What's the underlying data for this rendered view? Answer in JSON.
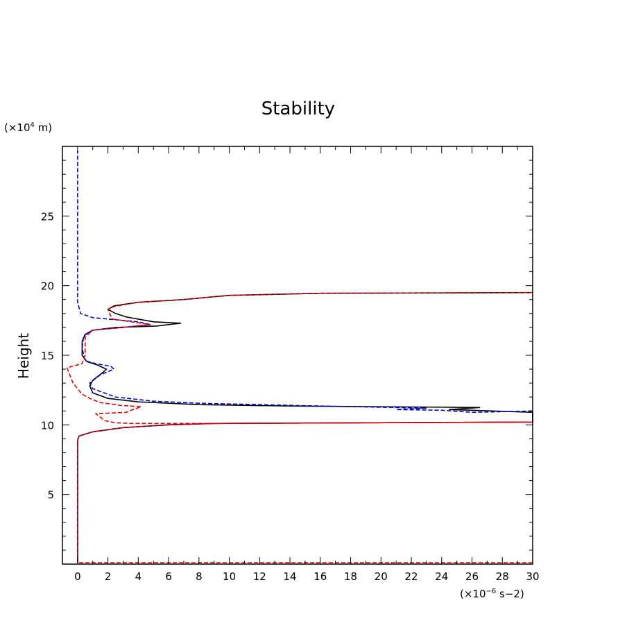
{
  "chart_data": {
    "type": "line",
    "title": "Stability",
    "ylabel": "Height",
    "y_unit_base": "(×10",
    "y_unit_exp": "4",
    "y_unit_tail": " m)",
    "x_unit_base": "(×10",
    "x_unit_exp": "−6",
    "x_unit_tail": " s−2)",
    "xlim": [
      -1,
      30
    ],
    "ylim": [
      0,
      30
    ],
    "xticks": [
      0,
      2,
      4,
      6,
      8,
      10,
      12,
      14,
      16,
      18,
      20,
      22,
      24,
      26,
      28,
      30
    ],
    "yticks": [
      5,
      10,
      15,
      20,
      25
    ],
    "grid": false,
    "legend": "none",
    "series": [
      {
        "color": "#000000",
        "dash": "solid",
        "points": [
          [
            0,
            0.1
          ],
          [
            0,
            8.9
          ],
          [
            0.1,
            9.2
          ],
          [
            1,
            9.5
          ],
          [
            3,
            9.8
          ],
          [
            6,
            10.0
          ],
          [
            9,
            10.1
          ],
          [
            30,
            10.2
          ],
          [
            30,
            10.9
          ],
          [
            26,
            11.05
          ],
          [
            24.5,
            11.1
          ],
          [
            26.5,
            11.25
          ],
          [
            14,
            11.35
          ],
          [
            8,
            11.45
          ],
          [
            4,
            11.65
          ],
          [
            2,
            11.9
          ],
          [
            1,
            12.3
          ],
          [
            0.8,
            12.8
          ],
          [
            1,
            13.2
          ],
          [
            1.7,
            13.8
          ],
          [
            1.9,
            14.0
          ],
          [
            1.3,
            14.3
          ],
          [
            0.6,
            14.55
          ],
          [
            0.3,
            15.0
          ],
          [
            0.3,
            16.0
          ],
          [
            0.5,
            16.5
          ],
          [
            1,
            16.8
          ],
          [
            2.5,
            17.0
          ],
          [
            5.2,
            17.1
          ],
          [
            6.8,
            17.3
          ],
          [
            5,
            17.4
          ],
          [
            3.2,
            17.75
          ],
          [
            2.5,
            18.0
          ],
          [
            2,
            18.3
          ],
          [
            2.4,
            18.55
          ],
          [
            4,
            18.8
          ],
          [
            7,
            19.0
          ],
          [
            10,
            19.3
          ],
          [
            16,
            19.45
          ],
          [
            30,
            19.5
          ]
        ]
      },
      {
        "color": "#0000cc",
        "dash": "dashed",
        "points": [
          [
            0,
            0.1
          ],
          [
            0,
            8.9
          ],
          [
            0.1,
            9.2
          ],
          [
            1,
            9.5
          ],
          [
            3,
            9.8
          ],
          [
            6,
            10.0
          ],
          [
            9,
            10.1
          ],
          [
            30,
            10.2
          ],
          [
            30,
            11.0
          ],
          [
            26,
            10.9
          ],
          [
            24,
            11.05
          ],
          [
            21,
            11.1
          ],
          [
            23,
            11.2
          ],
          [
            14,
            11.4
          ],
          [
            8,
            11.55
          ],
          [
            5,
            11.7
          ],
          [
            2.5,
            12.0
          ],
          [
            1,
            12.6
          ],
          [
            0.8,
            13.0
          ],
          [
            1.5,
            13.6
          ],
          [
            2.4,
            14.0
          ],
          [
            2.2,
            14.2
          ],
          [
            1.2,
            14.4
          ],
          [
            0.5,
            14.6
          ],
          [
            0.3,
            15.5
          ],
          [
            0.4,
            16.4
          ],
          [
            1,
            16.8
          ],
          [
            3,
            17.0
          ],
          [
            4.8,
            17.2
          ],
          [
            4,
            17.4
          ],
          [
            2.5,
            17.55
          ],
          [
            1,
            17.7
          ],
          [
            0.2,
            18.0
          ],
          [
            0,
            18.8
          ],
          [
            0,
            29.7
          ]
        ]
      },
      {
        "color": "#dd0000",
        "dash": "dashed",
        "points": [
          [
            30,
            0.1
          ],
          [
            0,
            0.1
          ],
          [
            0,
            8.9
          ],
          [
            0.1,
            9.2
          ],
          [
            1,
            9.5
          ],
          [
            3,
            9.8
          ],
          [
            6,
            10.0
          ],
          [
            9,
            10.1
          ],
          [
            30,
            10.2
          ],
          [
            30,
            10.2
          ],
          [
            9,
            10.1
          ],
          [
            3.5,
            10.1
          ],
          [
            2.5,
            10.15
          ],
          [
            1.8,
            10.3
          ],
          [
            1.2,
            10.8
          ],
          [
            3.2,
            10.9
          ],
          [
            3.4,
            11.0
          ],
          [
            4.2,
            11.3
          ],
          [
            2.8,
            11.4
          ],
          [
            1.5,
            11.6
          ],
          [
            0.8,
            11.9
          ],
          [
            0.3,
            12.2
          ],
          [
            -0.3,
            13.0
          ],
          [
            -0.7,
            14.1
          ],
          [
            0.3,
            14.4
          ],
          [
            0.5,
            15.0
          ],
          [
            0.5,
            16.3
          ],
          [
            1,
            16.8
          ],
          [
            4.8,
            17.2
          ],
          [
            2.3,
            17.6
          ],
          [
            2.1,
            18.0
          ],
          [
            2.0,
            18.3
          ],
          [
            2.4,
            18.5
          ],
          [
            4,
            18.8
          ],
          [
            7,
            19.0
          ],
          [
            10,
            19.3
          ],
          [
            16,
            19.45
          ],
          [
            30,
            19.5
          ]
        ]
      }
    ]
  }
}
